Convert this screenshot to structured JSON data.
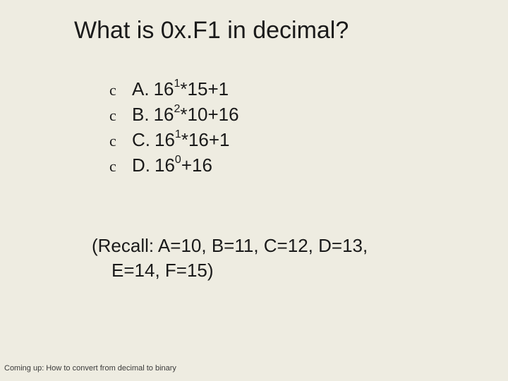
{
  "slide": {
    "background_color": "#eeece1",
    "text_color": "#1a1a1a",
    "title": "What is 0x.F1 in decimal?",
    "title_fontsize": 34,
    "bullet_glyph": "c",
    "bullet_fontfamily": "Segoe Script",
    "options_fontsize": 26,
    "options": [
      {
        "label": "A.",
        "base": "16",
        "exp": "1",
        "rest": "*15+1"
      },
      {
        "label": "B.",
        "base": "16",
        "exp": "2",
        "rest": "*10+16"
      },
      {
        "label": "C.",
        "base": "16",
        "exp": "1",
        "rest": "*16+1"
      },
      {
        "label": "D.",
        "base": "16",
        "exp": "0",
        "rest": "+16"
      }
    ],
    "recall_line1": "(Recall: A=10, B=11, C=12, D=13,",
    "recall_line2": "E=14, F=15)",
    "footer": "Coming up: How to convert from decimal to binary",
    "footer_fontsize": 11
  }
}
